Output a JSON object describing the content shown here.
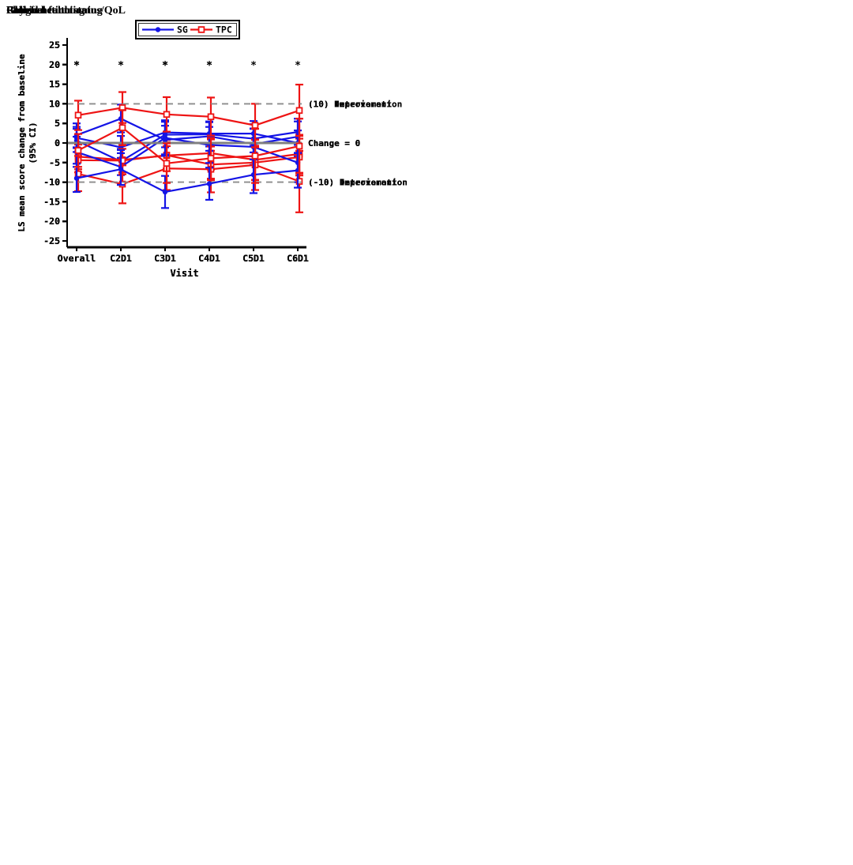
{
  "figure": {
    "background": "#ffffff",
    "significance_marker": "*",
    "significance_marker_meaning": "significant difference marker shown at y = 20"
  },
  "colors": {
    "sg": "#1414e6",
    "tpc": "#ee1414",
    "zero_line": "#808080",
    "ref_dashed": "#8c8c8c",
    "axis": "#000000",
    "text": "#000000",
    "legend_border": "#000000"
  },
  "legend": {
    "items": [
      {
        "label": "SG",
        "marker": "filled-circle",
        "color_key": "sg"
      },
      {
        "label": "TPC",
        "marker": "open-square",
        "color_key": "tpc"
      }
    ]
  },
  "chart_data": [
    {
      "type": "line",
      "title": "Global health status/QoL",
      "xlabel": "Visit",
      "ylabel": "LS mean score change from baseline",
      "ylabel_line2": "(95% CI)",
      "ylim": [
        -25,
        25
      ],
      "ytick_step": 5,
      "grid": false,
      "legend_position": "top-center",
      "categories": [
        "Overall",
        "C2D1",
        "C3D1",
        "C4D1",
        "C5D1",
        "C6D1"
      ],
      "significance_marker_y": 20,
      "significant_visits": [
        "Overall",
        "C3D1",
        "C4D1",
        "C6D1"
      ],
      "ref_lines": [
        {
          "y": 10,
          "style": "dashed",
          "label": "(10) Improvement"
        },
        {
          "y": 0,
          "style": "solid",
          "label": "Change = 0"
        },
        {
          "y": -10,
          "style": "dashed",
          "label": "(-10) Deterioration"
        }
      ],
      "series": [
        {
          "name": "SG",
          "color_key": "sg",
          "marker": "filled-circle",
          "values": [
            0.6,
            -4.7,
            2.1,
            2.2,
            1.1,
            2.8
          ],
          "ci_lower": [
            -2.3,
            -8.2,
            -1.1,
            -0.9,
            -2.4,
            -0.5
          ],
          "ci_upper": [
            3.6,
            -1.5,
            5.4,
            5.5,
            4.8,
            6.2
          ]
        },
        {
          "name": "TPC",
          "color_key": "tpc",
          "marker": "open-square",
          "values": [
            -3.5,
            -4.3,
            -3.2,
            -2.6,
            -4.3,
            -2.8
          ],
          "ci_lower": [
            -6.7,
            -8.0,
            -7.2,
            -6.8,
            -9.5,
            -7.8
          ],
          "ci_upper": [
            -0.4,
            -0.4,
            0.8,
            0.9,
            0.9,
            2.1
          ]
        }
      ]
    },
    {
      "type": "line",
      "title": "Physical functioning",
      "xlabel": "Visit",
      "ylabel": "LS mean score change from baseline",
      "ylabel_line2": "(95% CI)",
      "ylim": [
        -25,
        25
      ],
      "ytick_step": 5,
      "grid": false,
      "legend_position": "top-center",
      "categories": [
        "Overall",
        "C2D1",
        "C3D1",
        "C4D1",
        "C5D1",
        "C6D1"
      ],
      "significance_marker_y": 20,
      "significant_visits": [
        "Overall",
        "C2D1",
        "C3D1",
        "C4D1",
        "C5D1"
      ],
      "ref_lines": [
        {
          "y": 10,
          "style": "dashed",
          "label": "(10) Improvement"
        },
        {
          "y": 0,
          "style": "solid",
          "label": "Change = 0"
        },
        {
          "y": -10,
          "style": "dashed",
          "label": "(-10) Deterioration"
        }
      ],
      "series": [
        {
          "name": "SG",
          "color_key": "sg",
          "marker": "filled-circle",
          "values": [
            1.3,
            -1.1,
            2.7,
            2.4,
            2.4,
            0.0
          ],
          "ci_lower": [
            -1.3,
            -3.8,
            0.0,
            -0.4,
            -0.7,
            -3.4
          ],
          "ci_upper": [
            4.1,
            1.8,
            5.6,
            5.3,
            5.6,
            3.2
          ]
        },
        {
          "name": "TPC",
          "color_key": "tpc",
          "marker": "open-square",
          "values": [
            -4.4,
            -4.5,
            -3.1,
            -5.5,
            -5.0,
            -3.6
          ],
          "ci_lower": [
            -7.5,
            -7.5,
            -6.5,
            -9.1,
            -9.4,
            -8.3
          ],
          "ci_upper": [
            -1.4,
            -1.5,
            0.2,
            -2.0,
            -0.7,
            1.1
          ]
        }
      ]
    },
    {
      "type": "line",
      "title": "Role functioning",
      "xlabel": "Visit",
      "ylabel": "LS mean score change from baseline",
      "ylabel_line2": "(95% CI)",
      "ylim": [
        -25,
        25
      ],
      "ytick_step": 5,
      "grid": false,
      "legend_position": "top-center",
      "categories": [
        "Overall",
        "C2D1",
        "C3D1",
        "C4D1",
        "C5D1",
        "C6D1"
      ],
      "significance_marker_y": 20,
      "significant_visits": [
        "Overall",
        "C3D1"
      ],
      "ref_lines": [
        {
          "y": 10,
          "style": "dashed",
          "label": "(10) Improvement"
        },
        {
          "y": 0,
          "style": "solid",
          "label": "Change = 0"
        },
        {
          "y": -10,
          "style": "dashed",
          "label": "(-10) Deterioration"
        }
      ],
      "series": [
        {
          "name": "SG",
          "color_key": "sg",
          "marker": "filled-circle",
          "values": [
            -2.3,
            -6.1,
            1.3,
            -0.5,
            -1.0,
            -5.0
          ],
          "ci_lower": [
            -6.1,
            -10.5,
            -3.3,
            -5.1,
            -5.6,
            -10.0
          ],
          "ci_upper": [
            1.6,
            -1.8,
            5.8,
            4.1,
            3.6,
            0.0
          ]
        },
        {
          "name": "TPC",
          "color_key": "tpc",
          "marker": "open-square",
          "values": [
            -7.9,
            -10.5,
            -6.5,
            -6.7,
            -5.6,
            -9.8
          ],
          "ci_lower": [
            -12.3,
            -15.4,
            -12.0,
            -12.6,
            -12.0,
            -17.7
          ],
          "ci_upper": [
            -3.3,
            -5.7,
            -0.8,
            -0.9,
            0.8,
            -2.0
          ]
        }
      ]
    },
    {
      "type": "line",
      "title": "Fatigue",
      "xlabel": "Visit",
      "ylabel": "LS mean score change from baseline",
      "ylabel_line2": "(95% CI)",
      "ylim": [
        -25,
        25
      ],
      "ytick_step": 5,
      "grid": false,
      "legend_position": "top-center",
      "categories": [
        "Overall",
        "C2D1",
        "C3D1",
        "C4D1",
        "C5D1",
        "C6D1"
      ],
      "significance_marker_y": 20,
      "significant_visits": [
        "Overall",
        "C3D1"
      ],
      "ref_lines": [
        {
          "y": 10,
          "style": "dashed",
          "label": "(10) Deterioration"
        },
        {
          "y": 0,
          "style": "solid",
          "label": "Change = 0"
        },
        {
          "y": -10,
          "style": "dashed",
          "label": "(-10) Improvement"
        }
      ],
      "series": [
        {
          "name": "SG",
          "color_key": "sg",
          "marker": "filled-circle",
          "values": [
            2.0,
            6.2,
            0.8,
            1.7,
            -0.3,
            1.6
          ],
          "ci_lower": [
            -1.1,
            2.7,
            -2.9,
            -2.0,
            -4.2,
            -2.5
          ],
          "ci_upper": [
            5.0,
            9.8,
            4.4,
            5.4,
            3.7,
            5.5
          ]
        },
        {
          "name": "TPC",
          "color_key": "tpc",
          "marker": "open-square",
          "values": [
            7.1,
            9.0,
            7.3,
            6.7,
            4.5,
            8.3
          ],
          "ci_lower": [
            3.3,
            5.1,
            2.9,
            1.9,
            -1.1,
            1.8
          ],
          "ci_upper": [
            10.8,
            13.0,
            11.7,
            11.6,
            10.0,
            14.9
          ]
        }
      ]
    },
    {
      "type": "line",
      "title": "Pain",
      "xlabel": "Visit",
      "ylabel": "LS mean score change from baseline",
      "ylabel_line2": "(95% CI)",
      "ylim": [
        -25,
        25
      ],
      "ytick_step": 5,
      "grid": false,
      "legend_position": "top-center",
      "categories": [
        "Overall",
        "C2D1",
        "C3D1",
        "C4D1",
        "C5D1",
        "C6D1"
      ],
      "significance_marker_y": 20,
      "significant_visits": [
        "Overall",
        "C2D1",
        "C3D1",
        "C4D1"
      ],
      "ref_lines": [
        {
          "y": 10,
          "style": "dashed",
          "label": "(10) Deterioration"
        },
        {
          "y": 0,
          "style": "solid",
          "label": "Change = 0"
        },
        {
          "y": -10,
          "style": "dashed",
          "label": "(-10) Improvement"
        }
      ],
      "series": [
        {
          "name": "SG",
          "color_key": "sg",
          "marker": "filled-circle",
          "values": [
            -9.0,
            -6.7,
            -12.5,
            -10.4,
            -8.1,
            -7.0
          ],
          "ci_lower": [
            -12.5,
            -10.7,
            -16.6,
            -14.5,
            -12.8,
            -11.4
          ],
          "ci_upper": [
            -5.3,
            -2.6,
            -8.4,
            -6.3,
            -3.4,
            -2.6
          ]
        },
        {
          "name": "TPC",
          "color_key": "tpc",
          "marker": "open-square",
          "values": [
            -1.9,
            3.9,
            -5.2,
            -3.9,
            -3.3,
            -0.8
          ],
          "ci_lower": [
            -6.1,
            -0.6,
            -10.2,
            -9.5,
            -10.2,
            -7.6
          ],
          "ci_upper": [
            2.3,
            8.4,
            -0.1,
            1.3,
            3.6,
            6.2
          ]
        }
      ]
    }
  ]
}
